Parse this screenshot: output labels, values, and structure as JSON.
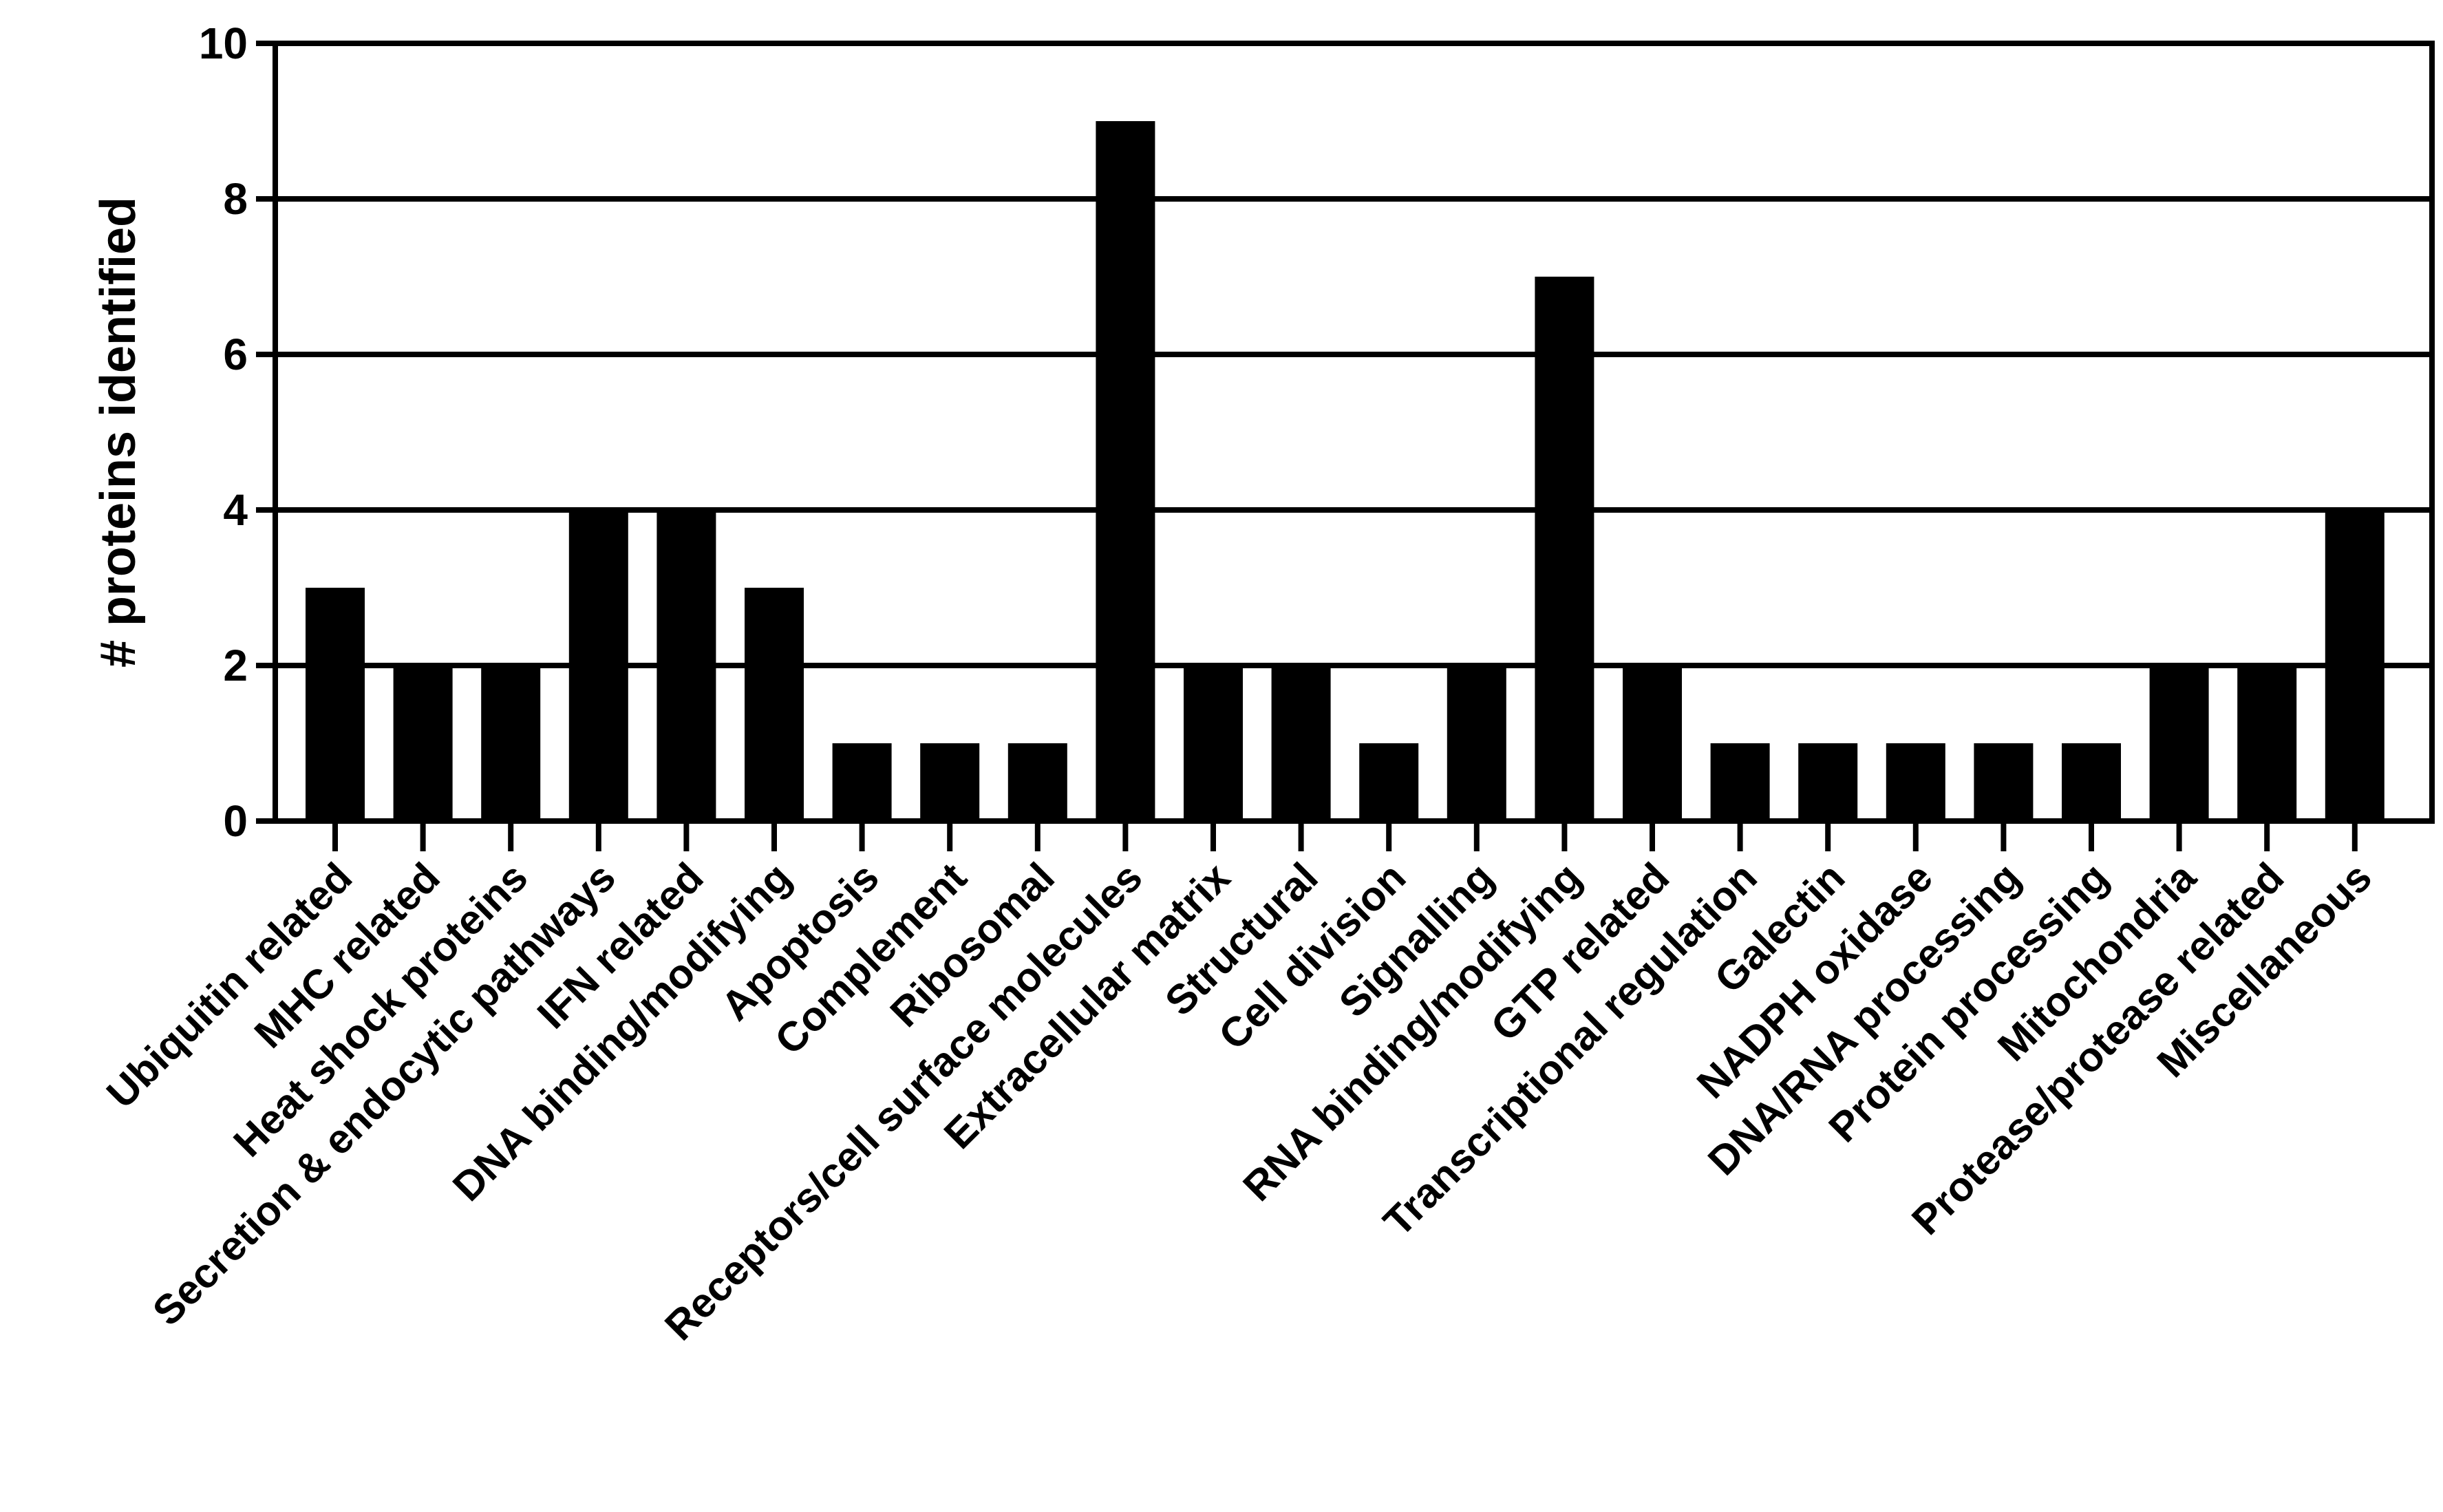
{
  "chart_data": {
    "type": "bar",
    "title": "",
    "xlabel": "",
    "ylabel": "# proteins identified",
    "ylim": [
      0,
      10
    ],
    "yticks": [
      0,
      2,
      4,
      6,
      8,
      10
    ],
    "ytick_labels": [
      "0",
      "2",
      "4",
      "6",
      "8",
      "10"
    ],
    "grid": true,
    "grid_axis": "y",
    "bar_color": "#000000",
    "categories": [
      "Ubiquitin related",
      "MHC related",
      "Heat shock proteins",
      "Secretion & endocytic pathways",
      "IFN related",
      "DNA binding/modifying",
      "Apoptosis",
      "Complement",
      "Ribosomal",
      "Receptors/cell surface molecules",
      "Extracellular matrix",
      "Structural",
      "Cell division",
      "Signalling",
      "RNA binding/modifying",
      "GTP related",
      "Transcriptional regulation",
      "Galectin",
      "NADPH oxidase",
      "DNA/RNA processing",
      "Protein processing",
      "Mitochondria",
      "Protease/protease related",
      "Miscellaneous"
    ],
    "values": [
      3,
      2,
      2,
      4,
      4,
      3,
      1,
      1,
      1,
      9,
      2,
      2,
      1,
      2,
      7,
      2,
      1,
      1,
      1,
      1,
      1,
      2,
      2,
      4
    ]
  }
}
